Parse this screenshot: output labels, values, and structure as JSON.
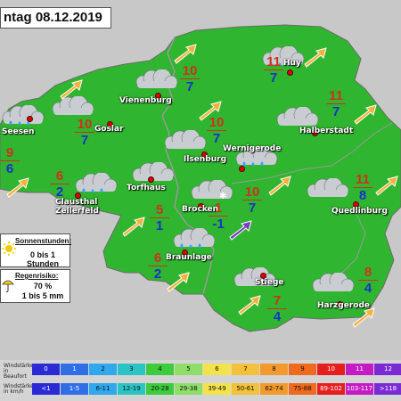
{
  "title": "ntag 08.12.2019",
  "colors": {
    "land": "#2fb52f",
    "border": "#9a9a9a",
    "temp_max": "#d0301c",
    "temp_min": "#1633c9",
    "wind_default": "#f2b23a",
    "wind_strong": "#7a3fc1"
  },
  "cities": [
    {
      "name": "Seesen",
      "tmax": "9",
      "tmin": "6",
      "weather": "cloudy-rain-icon",
      "wind": "ne"
    },
    {
      "name": "Goslar",
      "tmax": "10",
      "tmin": "7",
      "weather": "cloudy-icon",
      "wind": "ne"
    },
    {
      "name": "Vienenburg",
      "tmax": "10",
      "tmin": "7",
      "weather": "cloudy-icon",
      "wind": "ne"
    },
    {
      "name": "Huy",
      "tmax": "11",
      "tmin": "7",
      "weather": "cloudy-rain-icon",
      "wind": "ne"
    },
    {
      "name": "Halberstadt",
      "tmax": "11",
      "tmin": "7",
      "weather": "cloudy-icon",
      "wind": "ne"
    },
    {
      "name": "Ilsenburg",
      "tmax": "10",
      "tmin": "7",
      "weather": "cloudy-icon",
      "wind": "ne"
    },
    {
      "name": "Wernigerode",
      "tmax": "10",
      "tmin": "7",
      "weather": "cloudy-rain-icon",
      "wind": "ne"
    },
    {
      "name": "Clausthal Zellerfeld",
      "tmax": "6",
      "tmin": "2",
      "weather": "cloudy-rain-icon",
      "wind": "ne"
    },
    {
      "name": "Torfhaus",
      "tmax": "5",
      "tmin": "1",
      "weather": "cloudy-icon",
      "wind": "ne"
    },
    {
      "name": "Brocken",
      "tmax": "1",
      "tmin": "-1",
      "weather": "cloudy-snow-icon",
      "wind": "ne-strong"
    },
    {
      "name": "Quedlinburg",
      "tmax": "11",
      "tmin": "8",
      "weather": "cloudy-icon",
      "wind": "ne"
    },
    {
      "name": "Braunlage",
      "tmax": "6",
      "tmin": "2",
      "weather": "cloudy-rain-icon",
      "wind": "ne"
    },
    {
      "name": "Stiege",
      "tmax": "7",
      "tmin": "4",
      "weather": "cloudy-icon",
      "wind": "ne"
    },
    {
      "name": "Harzgerode",
      "tmax": "8",
      "tmin": "4",
      "weather": "cloudy-icon",
      "wind": "ne"
    }
  ],
  "sunshine": {
    "label": "Sonnenstunden:",
    "value": "0 bis 1 Stunden",
    "icon": "sun-icon"
  },
  "rain": {
    "label": "Regenrisiko:",
    "percent": "70 %",
    "amount": "1 bis 5 mm",
    "icon": "umbrella-icon"
  },
  "wind_scale": {
    "label_beaufort": "Windstärke in Beaufort",
    "label_kmh": "Windstärke in km/h",
    "beaufort": [
      "0",
      "1",
      "2",
      "3",
      "4",
      "5",
      "6",
      "7",
      "8",
      "9",
      "10",
      "11",
      "12"
    ],
    "kmh": [
      "<1",
      "1-5",
      "6-11",
      "12-19",
      "20-28",
      "29-38",
      "39-49",
      "50-61",
      "62-74",
      "75-88",
      "89-102",
      "103-117",
      ">118"
    ],
    "colors": [
      "#2b2bd6",
      "#2f6ee6",
      "#2fa8ee",
      "#2bc4c4",
      "#3ccc3c",
      "#8fde6a",
      "#f3e34a",
      "#f3c23a",
      "#f39a2e",
      "#ef6a1c",
      "#e61e1e",
      "#c51bc5",
      "#7b2bd6"
    ]
  }
}
